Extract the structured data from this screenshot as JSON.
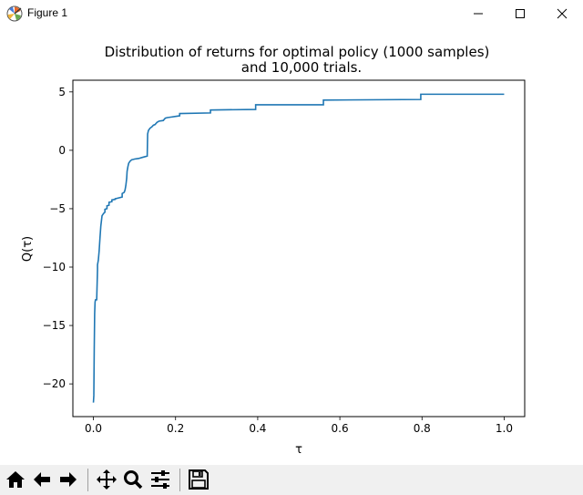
{
  "window": {
    "title": "Figure 1",
    "icons": [
      "figure-app-icon",
      "minimize-icon",
      "maximize-icon",
      "close-icon"
    ]
  },
  "toolbar": {
    "icons": [
      "home-icon",
      "back-arrow-icon",
      "forward-arrow-icon",
      "pan-icon",
      "zoom-icon",
      "configure-subplots-icon",
      "save-icon"
    ]
  },
  "chart_data": {
    "type": "line",
    "title_line1": "Distribution of returns for optimal policy (1000 samples)",
    "title_line2": "and 10,000 trials.",
    "xlabel": "τ",
    "ylabel": "Q(τ)",
    "xlim": [
      -0.05,
      1.05
    ],
    "ylim": [
      -22.8,
      6.0
    ],
    "xticks": [
      0.0,
      0.2,
      0.4,
      0.6,
      0.8,
      1.0
    ],
    "xtick_labels": [
      "0.0",
      "0.2",
      "0.4",
      "0.6",
      "0.8",
      "1.0"
    ],
    "yticks": [
      5,
      0,
      -5,
      -10,
      -15,
      -20
    ],
    "ytick_labels": [
      "5",
      "0",
      "−5",
      "−10",
      "−15",
      "−20"
    ],
    "grid": false,
    "line_color": "#1f77b4",
    "series": [
      {
        "x": [
          0.0,
          0.001,
          0.002,
          0.003,
          0.004,
          0.005,
          0.006,
          0.008,
          0.01,
          0.01,
          0.012,
          0.014,
          0.016,
          0.018,
          0.02,
          0.021,
          0.023,
          0.025,
          0.028,
          0.028,
          0.033,
          0.033,
          0.038,
          0.038,
          0.045,
          0.045,
          0.053,
          0.053,
          0.07,
          0.07,
          0.075,
          0.077,
          0.079,
          0.081,
          0.082,
          0.084,
          0.086,
          0.088,
          0.09,
          0.092,
          0.094,
          0.097,
          0.1,
          0.11,
          0.12,
          0.125,
          0.131,
          0.132,
          0.134,
          0.138,
          0.142,
          0.146,
          0.15,
          0.155,
          0.16,
          0.17,
          0.175,
          0.18,
          0.19,
          0.2,
          0.21,
          0.21,
          0.285,
          0.285,
          0.395,
          0.395,
          0.56,
          0.56,
          0.797,
          0.797,
          1.0
        ],
        "y": [
          -21.6,
          -21.0,
          -17.0,
          -14.0,
          -13.0,
          -12.8,
          -12.8,
          -12.8,
          -10.2,
          -9.8,
          -9.4,
          -8.6,
          -7.5,
          -6.5,
          -5.9,
          -5.6,
          -5.5,
          -5.4,
          -5.3,
          -5.05,
          -5.0,
          -4.75,
          -4.7,
          -4.45,
          -4.4,
          -4.25,
          -4.2,
          -4.15,
          -4.0,
          -3.7,
          -3.6,
          -3.4,
          -3.0,
          -2.4,
          -1.8,
          -1.4,
          -1.1,
          -1.0,
          -0.9,
          -0.85,
          -0.8,
          -0.78,
          -0.75,
          -0.7,
          -0.6,
          -0.55,
          -0.5,
          1.4,
          1.7,
          1.9,
          2.0,
          2.15,
          2.2,
          2.4,
          2.5,
          2.55,
          2.75,
          2.8,
          2.85,
          2.9,
          2.95,
          3.15,
          3.2,
          3.45,
          3.5,
          3.9,
          3.9,
          4.3,
          4.35,
          4.8,
          4.8
        ]
      }
    ]
  }
}
